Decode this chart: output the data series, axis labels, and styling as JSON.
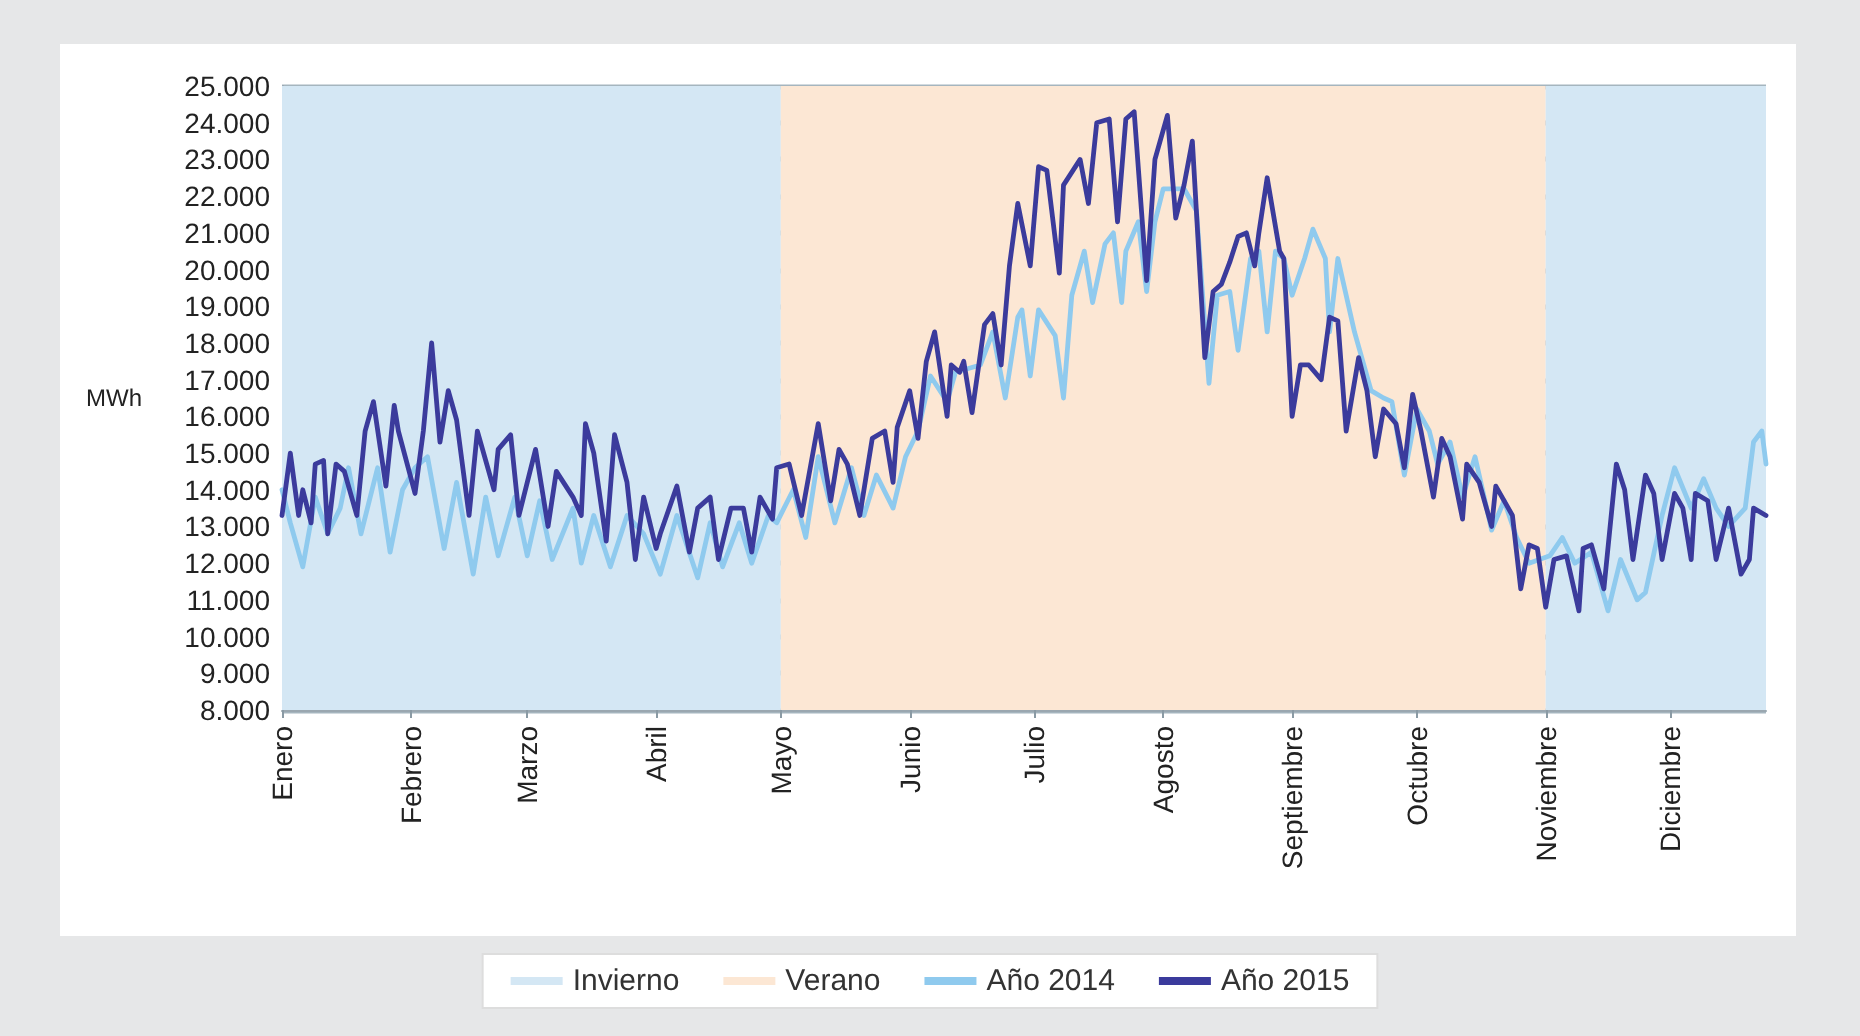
{
  "chart_data": {
    "type": "line",
    "ylabel": "MWh",
    "xlim": [
      "--01-01",
      "--12-24"
    ],
    "xticks": [
      {
        "value": "--01-01",
        "label": "Enero"
      },
      {
        "value": "--02-01",
        "label": "Febrero"
      },
      {
        "value": "--03-01",
        "label": "Marzo"
      },
      {
        "value": "--04-01",
        "label": "Abril"
      },
      {
        "value": "--05-01",
        "label": "Mayo"
      },
      {
        "value": "--06-01",
        "label": "Junio"
      },
      {
        "value": "--07-01",
        "label": "Julio"
      },
      {
        "value": "--08-01",
        "label": "Agosto"
      },
      {
        "value": "--09-01",
        "label": "Septiembre"
      },
      {
        "value": "--10-01",
        "label": "Octubre"
      },
      {
        "value": "--11-01",
        "label": "Noviembre"
      },
      {
        "value": "--12-01",
        "label": "Diciembre"
      }
    ],
    "ylim": [
      8000,
      25000
    ],
    "yticks": [
      {
        "value": 8000,
        "label": "8.000"
      },
      {
        "value": 9000,
        "label": "9.000"
      },
      {
        "value": 10000,
        "label": "10.000"
      },
      {
        "value": 11000,
        "label": "11.000"
      },
      {
        "value": 12000,
        "label": "12.000"
      },
      {
        "value": 13000,
        "label": "13.000"
      },
      {
        "value": 14000,
        "label": "14.000"
      },
      {
        "value": 15000,
        "label": "15.000"
      },
      {
        "value": 16000,
        "label": "16.000"
      },
      {
        "value": 17000,
        "label": "17.000"
      },
      {
        "value": 18000,
        "label": "18.000"
      },
      {
        "value": 19000,
        "label": "19.000"
      },
      {
        "value": 20000,
        "label": "20.000"
      },
      {
        "value": 21000,
        "label": "21.000"
      },
      {
        "value": 22000,
        "label": "22.000"
      },
      {
        "value": 23000,
        "label": "23.000"
      },
      {
        "value": 24000,
        "label": "24.000"
      },
      {
        "value": 25000,
        "label": "25.000"
      }
    ],
    "grid": "y",
    "legend": "bottom",
    "marker": "none",
    "line_style": "solid",
    "bands": [
      {
        "axis": "x",
        "from": "--01-01",
        "to": "--05-01",
        "label": "Invierno",
        "color": "#d4e7f4"
      },
      {
        "axis": "x",
        "from": "--05-01",
        "to": "--11-01",
        "label": "Verano",
        "color": "#fce7d4"
      },
      {
        "axis": "x",
        "from": "--11-01",
        "to": "--12-24",
        "color": "#d4e7f4"
      }
    ],
    "series": [
      {
        "name": "Año 2014",
        "color": "#8fcaee",
        "x": [
          "--01-01",
          "--01-03",
          "--01-06",
          "--01-09",
          "--01-12",
          "--01-15",
          "--01-17",
          "--01-20",
          "--01-24",
          "--01-27",
          "--01-30",
          "--02-02",
          "--02-05",
          "--02-09",
          "--02-12",
          "--02-16",
          "--02-19",
          "--02-22",
          "--02-26",
          "--03-01",
          "--03-04",
          "--03-07",
          "--03-12",
          "--03-14",
          "--03-17",
          "--03-21",
          "--03-25",
          "--03-29",
          "--04-02",
          "--04-06",
          "--04-11",
          "--04-14",
          "--04-17",
          "--04-21",
          "--04-24",
          "--04-28",
          "--04-30",
          "--05-04",
          "--05-07",
          "--05-10",
          "--05-14",
          "--05-18",
          "--05-21",
          "--05-24",
          "--05-28",
          "--05-31",
          "--06-03",
          "--06-06",
          "--06-10",
          "--06-12",
          "--06-18",
          "--06-21",
          "--06-24",
          "--06-27",
          "--06-28",
          "--06-30",
          "--07-02",
          "--07-06",
          "--07-08",
          "--07-10",
          "--07-13",
          "--07-15",
          "--07-18",
          "--07-20",
          "--07-22",
          "--07-23",
          "--07-26",
          "--07-28",
          "--07-30",
          "--08-01",
          "--08-06",
          "--08-09",
          "--08-12",
          "--08-14",
          "--08-17",
          "--08-19",
          "--08-22",
          "--08-24",
          "--08-26",
          "--08-28",
          "--08-30",
          "--09-01",
          "--09-04",
          "--09-06",
          "--09-09",
          "--09-10",
          "--09-12",
          "--09-16",
          "--09-20",
          "--09-23",
          "--09-25",
          "--09-28",
          "--10-01",
          "--10-04",
          "--10-06",
          "--10-09",
          "--10-12",
          "--10-15",
          "--10-19",
          "--10-22",
          "--10-25",
          "--10-28",
          "--11-02",
          "--11-05",
          "--11-08",
          "--11-12",
          "--11-16",
          "--11-19",
          "--11-23",
          "--11-25",
          "--11-29",
          "--12-02",
          "--12-06",
          "--12-09",
          "--12-12",
          "--12-15",
          "--12-19",
          "--12-21",
          "--12-23",
          "--12-24"
        ],
        "values": [
          14000,
          13100,
          11900,
          13800,
          12800,
          13500,
          14600,
          12800,
          14600,
          12300,
          14000,
          14600,
          14900,
          12400,
          14200,
          11700,
          13800,
          12200,
          13800,
          12200,
          13700,
          12100,
          13500,
          12000,
          13300,
          11900,
          13300,
          12800,
          11700,
          13300,
          11600,
          13100,
          11900,
          13100,
          12000,
          13300,
          13100,
          14000,
          12700,
          14900,
          13100,
          14600,
          13300,
          14400,
          13500,
          14900,
          15600,
          17100,
          16400,
          17200,
          17400,
          18300,
          16500,
          18700,
          18900,
          17100,
          18900,
          18200,
          16500,
          19300,
          20500,
          19100,
          20700,
          21000,
          19100,
          20500,
          21300,
          19400,
          21300,
          22200,
          22200,
          21600,
          16900,
          19300,
          19400,
          17800,
          20300,
          20500,
          18300,
          20500,
          20300,
          19300,
          20300,
          21100,
          20300,
          18300,
          20300,
          18300,
          16700,
          16500,
          16400,
          14400,
          16200,
          15600,
          14700,
          15300,
          13800,
          14900,
          12900,
          13700,
          12700,
          12000,
          12200,
          12700,
          12000,
          12300,
          10700,
          12100,
          11000,
          11200,
          13300,
          14600,
          13500,
          14300,
          13500,
          13000,
          13500,
          15300,
          15600,
          14700
        ]
      },
      {
        "name": "Año 2015",
        "color": "#3b3b9c",
        "x": [
          "--01-01",
          "--01-03",
          "--01-05",
          "--01-06",
          "--01-08",
          "--01-09",
          "--01-11",
          "--01-12",
          "--01-14",
          "--01-16",
          "--01-19",
          "--01-21",
          "--01-23",
          "--01-26",
          "--01-28",
          "--01-29",
          "--02-02",
          "--02-04",
          "--02-06",
          "--02-08",
          "--02-10",
          "--02-12",
          "--02-15",
          "--02-17",
          "--02-21",
          "--02-22",
          "--02-25",
          "--02-27",
          "--03-03",
          "--03-06",
          "--03-08",
          "--03-12",
          "--03-14",
          "--03-15",
          "--03-17",
          "--03-20",
          "--03-22",
          "--03-25",
          "--03-27",
          "--03-29",
          "--04-01",
          "--04-02",
          "--04-06",
          "--04-09",
          "--04-11",
          "--04-14",
          "--04-16",
          "--04-19",
          "--04-22",
          "--04-24",
          "--04-26",
          "--04-29",
          "--04-30",
          "--05-03",
          "--05-06",
          "--05-10",
          "--05-13",
          "--05-15",
          "--05-17",
          "--05-20",
          "--05-23",
          "--05-26",
          "--05-28",
          "--05-29",
          "--06-01",
          "--06-03",
          "--06-05",
          "--06-07",
          "--06-10",
          "--06-11",
          "--06-13",
          "--06-14",
          "--06-16",
          "--06-19",
          "--06-21",
          "--06-23",
          "--06-25",
          "--06-27",
          "--06-30",
          "--07-02",
          "--07-04",
          "--07-07",
          "--07-08",
          "--07-12",
          "--07-14",
          "--07-16",
          "--07-19",
          "--07-21",
          "--07-23",
          "--07-25",
          "--07-28",
          "--07-30",
          "--08-02",
          "--08-04",
          "--08-06",
          "--08-08",
          "--08-11",
          "--08-13",
          "--08-15",
          "--08-17",
          "--08-19",
          "--08-21",
          "--08-23",
          "--08-24",
          "--08-26",
          "--08-29",
          "--08-30",
          "--09-01",
          "--09-03",
          "--09-05",
          "--09-08",
          "--09-10",
          "--09-12",
          "--09-14",
          "--09-17",
          "--09-19",
          "--09-21",
          "--09-23",
          "--09-26",
          "--09-28",
          "--09-30",
          "--10-02",
          "--10-05",
          "--10-07",
          "--10-09",
          "--10-12",
          "--10-13",
          "--10-16",
          "--10-19",
          "--10-20",
          "--10-24",
          "--10-26",
          "--10-28",
          "--10-30",
          "--11-01",
          "--11-03",
          "--11-06",
          "--11-09",
          "--11-10",
          "--11-12",
          "--11-15",
          "--11-18",
          "--11-20",
          "--11-22",
          "--11-25",
          "--11-27",
          "--11-29",
          "--12-02",
          "--12-04",
          "--12-06",
          "--12-07",
          "--12-10",
          "--12-12",
          "--12-15",
          "--12-18",
          "--12-20",
          "--12-21",
          "--12-24"
        ],
        "values": [
          13300,
          15000,
          13300,
          14000,
          13100,
          14700,
          14800,
          12800,
          14700,
          14500,
          13300,
          15600,
          16400,
          14100,
          16300,
          15600,
          13900,
          15600,
          18000,
          15300,
          16700,
          15900,
          13300,
          15600,
          14000,
          15100,
          15500,
          13300,
          15100,
          13000,
          14500,
          13800,
          13300,
          15800,
          15000,
          12600,
          15500,
          14200,
          12100,
          13800,
          12400,
          12800,
          14100,
          12300,
          13500,
          13800,
          12100,
          13500,
          13500,
          12300,
          13800,
          13200,
          14600,
          14700,
          13300,
          15800,
          13700,
          15100,
          14700,
          13300,
          15400,
          15600,
          14200,
          15700,
          16700,
          15400,
          17500,
          18300,
          16000,
          17400,
          17200,
          17500,
          16100,
          18500,
          18800,
          17400,
          20100,
          21800,
          20100,
          22800,
          22700,
          19900,
          22300,
          23000,
          21800,
          24000,
          24100,
          21300,
          24100,
          24300,
          19700,
          23000,
          24200,
          21400,
          22300,
          23500,
          17600,
          19400,
          19600,
          20200,
          20900,
          21000,
          20100,
          21000,
          22500,
          20500,
          20300,
          16000,
          17400,
          17400,
          17000,
          18700,
          18600,
          15600,
          17600,
          16700,
          14900,
          16200,
          15800,
          14600,
          16600,
          15600,
          13800,
          15400,
          14900,
          13200,
          14700,
          14200,
          13000,
          14100,
          13300,
          11300,
          12500,
          12400,
          10800,
          12100,
          12200,
          10700,
          12400,
          12500,
          11300,
          14700,
          14000,
          12100,
          14400,
          13900,
          12100,
          13900,
          13500,
          12100,
          13900,
          13700,
          12100,
          13500,
          11700,
          12100,
          13500,
          13300
        ]
      }
    ]
  }
}
